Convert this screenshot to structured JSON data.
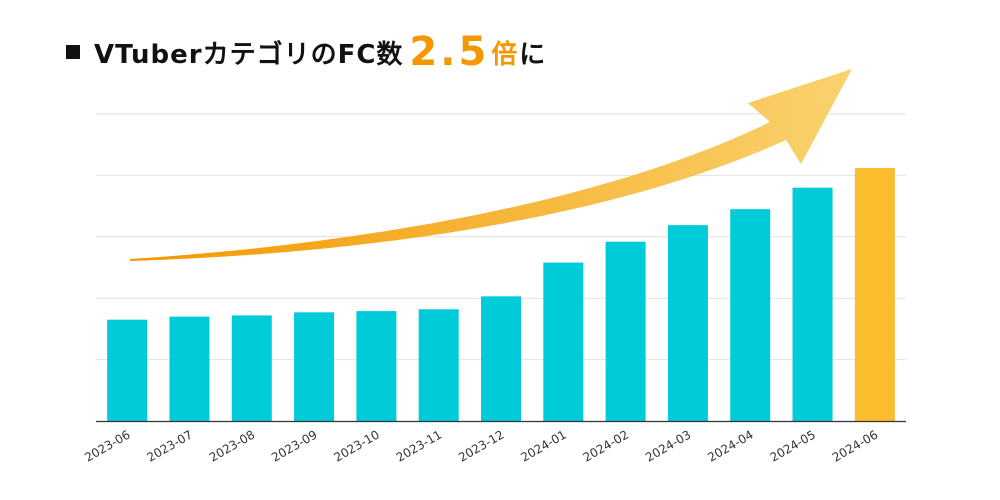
{
  "title": {
    "main": "VTuberカテゴリのFC数",
    "highlight": "2.5",
    "multiplier": "倍",
    "suffix": "に"
  },
  "colors": {
    "bar": "#00cbd9",
    "highlight_bar": "#fbbd2e",
    "arrow_start": "#f39800",
    "arrow_end": "#f9d26e",
    "grid": "#e2e2e2",
    "accent_text": "#f39800"
  },
  "chart_data": {
    "type": "bar",
    "title": "VTuberカテゴリのFC数 2.5倍に",
    "xlabel": "",
    "ylabel": "",
    "categories": [
      "2023-06",
      "2023-07",
      "2023-08",
      "2023-09",
      "2023-10",
      "2023-11",
      "2023-12",
      "2024-01",
      "2024-02",
      "2024-03",
      "2024-04",
      "2024-05",
      "2024-06"
    ],
    "values": [
      1.65,
      1.7,
      1.72,
      1.77,
      1.79,
      1.82,
      2.03,
      2.58,
      2.92,
      3.19,
      3.45,
      3.8,
      4.12
    ],
    "highlight_index": 12,
    "ylim": [
      0,
      5
    ],
    "grid": true,
    "trend_arrow": true
  }
}
